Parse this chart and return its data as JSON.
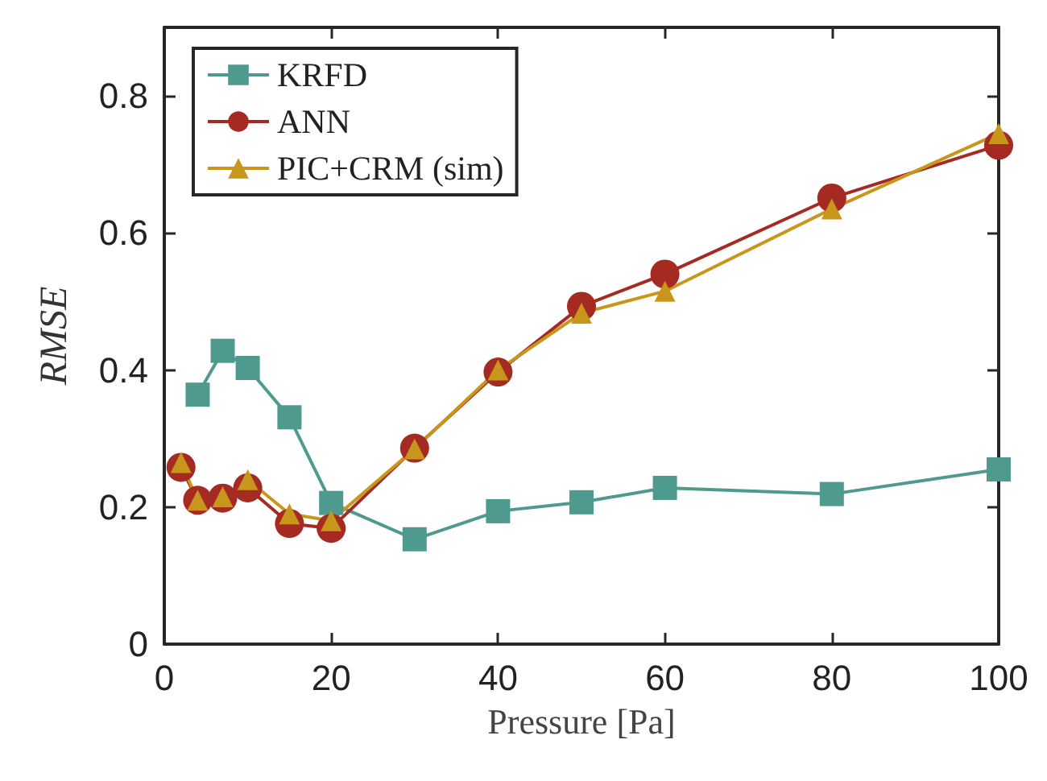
{
  "chart_data": {
    "type": "line",
    "xlabel": "Pressure [Pa]",
    "ylabel": "RMSE",
    "xlim": [
      0,
      100
    ],
    "xticks": [
      0,
      20,
      40,
      60,
      80,
      100
    ],
    "ylim": [
      0,
      0.9
    ],
    "yticks": [
      0,
      0.2,
      0.4,
      0.6,
      0.8
    ],
    "grid": false,
    "legend": "top left",
    "series": [
      {
        "name": "KRFD",
        "color": "#4e9a8e",
        "marker": "square",
        "x": [
          4,
          7,
          10,
          15,
          20,
          30,
          40,
          50,
          60,
          80,
          100
        ],
        "values": [
          0.364,
          0.428,
          0.403,
          0.331,
          0.206,
          0.153,
          0.194,
          0.207,
          0.228,
          0.219,
          0.255
        ]
      },
      {
        "name": "ANN",
        "color": "#a52a22",
        "marker": "circle",
        "x": [
          2,
          4,
          7,
          10,
          15,
          20,
          30,
          40,
          50,
          60,
          80,
          100
        ],
        "values": [
          0.258,
          0.21,
          0.213,
          0.228,
          0.176,
          0.169,
          0.286,
          0.397,
          0.493,
          0.54,
          0.651,
          0.728
        ]
      },
      {
        "name": "PIC+CRM (sim)",
        "color": "#c8961a",
        "marker": "triangle",
        "x": [
          2,
          4,
          7,
          10,
          15,
          20,
          30,
          40,
          50,
          60,
          80,
          100
        ],
        "values": [
          0.265,
          0.21,
          0.215,
          0.24,
          0.19,
          0.18,
          0.285,
          0.4,
          0.483,
          0.515,
          0.635,
          0.745
        ]
      }
    ]
  }
}
